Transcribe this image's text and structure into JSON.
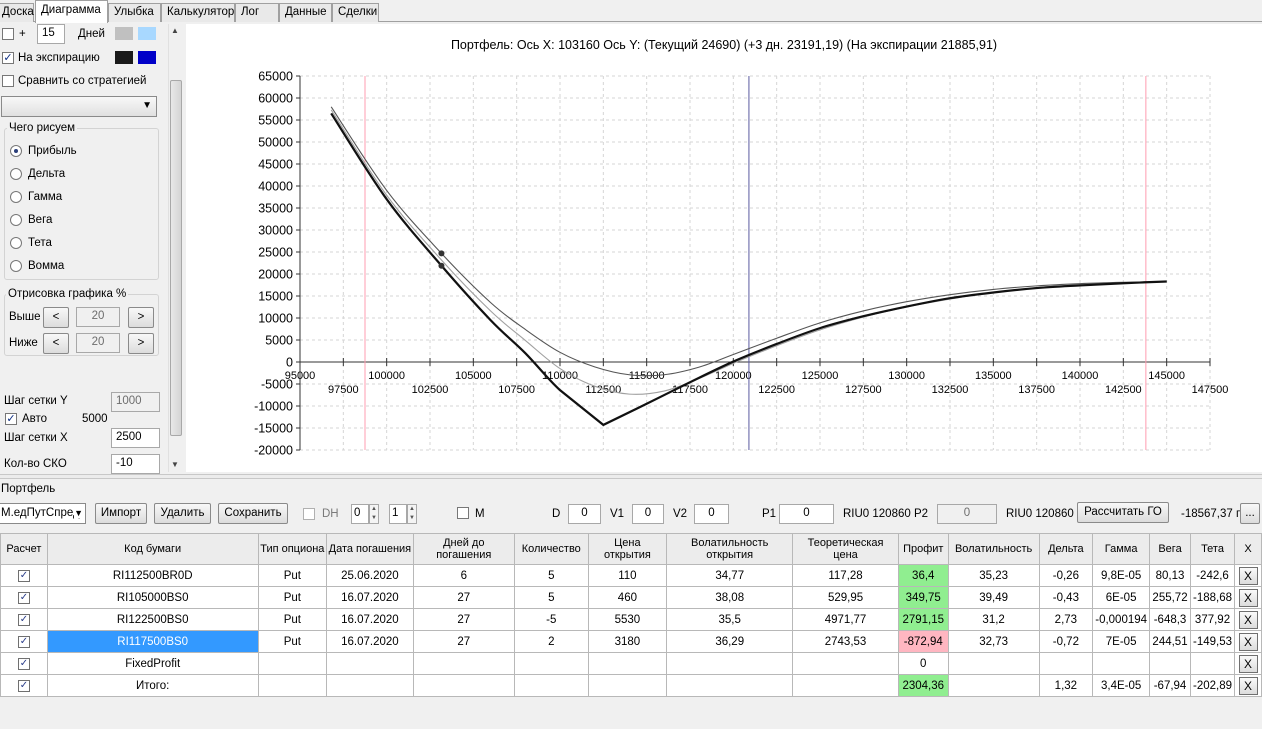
{
  "tabs": [
    "Доска",
    "Диаграмма",
    "Улыбка",
    "Калькулятор",
    "Лог",
    "Данные",
    "Сделки"
  ],
  "left": {
    "plus_label": "+",
    "days_value": "15",
    "days_label": "Дней",
    "expiry_label": "На экспирацию",
    "compare_label": "Сравнить со стратегией",
    "what_label": "Чего рисуем",
    "radios": [
      "Прибыль",
      "Дельта",
      "Гамма",
      "Вега",
      "Тета",
      "Вомма"
    ],
    "render_label": "Отрисовка графика %",
    "above_label": "Выше",
    "above_value": "20",
    "below_label": "Ниже",
    "below_value": "20",
    "grid_y_label": "Шаг сетки Y",
    "grid_y_value": "1000",
    "auto_label": "Авто",
    "auto_value": "5000",
    "grid_x_label": "Шаг сетки X",
    "grid_x_value": "2500",
    "sko_label": "Кол-во СКО",
    "sko_value": "-10"
  },
  "colors": {
    "swatch_gray": "#c0c0c0",
    "swatch_lightblue": "#a8d8ff",
    "swatch_black": "#1a1a1a",
    "swatch_blue": "#0000c8"
  },
  "chart_data": {
    "type": "line",
    "title": "Портфель: Ось X: 103160 Ось Y:  (Текущий 24690)  (+3 дн. 23191,19)  (На экспирации 21885,91)",
    "xlim": [
      95000,
      147500
    ],
    "ylim": [
      -20000,
      65000
    ],
    "x_ticks_top": [
      "95000",
      "100000",
      "105000",
      "110000",
      "115000",
      "120000",
      "125000",
      "130000",
      "135000",
      "140000",
      "145000"
    ],
    "x_ticks_bottom": [
      "97500",
      "102500",
      "107500",
      "112500",
      "117500",
      "122500",
      "127500",
      "132500",
      "137500",
      "142500",
      "147500"
    ],
    "y_ticks": [
      "65000",
      "60000",
      "55000",
      "50000",
      "45000",
      "40000",
      "35000",
      "30000",
      "25000",
      "20000",
      "15000",
      "10000",
      "5000",
      "0",
      "-5000",
      "-10000",
      "-15000",
      "-20000"
    ],
    "grid": true,
    "vlines": [
      {
        "x": 98750,
        "color": "#ff9db0"
      },
      {
        "x": 120900,
        "color": "#5a5aa0"
      },
      {
        "x": 143800,
        "color": "#ff9db0"
      }
    ],
    "series": [
      {
        "color": "#111111",
        "width": 2.2,
        "x": [
          96800,
          100000,
          103160,
          106000,
          108000,
          110000,
          112500,
          115000,
          117500,
          120000,
          122500,
          125000,
          127500,
          130000,
          132500,
          135000,
          137500,
          140000,
          142500,
          145000
        ],
        "y": [
          56500,
          37000,
          21900,
          9500,
          2000,
          -6400,
          -14300,
          -9500,
          -4600,
          100,
          4100,
          7700,
          10400,
          12600,
          14500,
          15800,
          16800,
          17400,
          17900,
          18300
        ]
      },
      {
        "color": "#555555",
        "width": 1.1,
        "x": [
          96800,
          100000,
          103160,
          106000,
          108000,
          110000,
          112000,
          114000,
          116000,
          118000,
          120000,
          122500,
          125000,
          127500,
          130000,
          132500,
          135000,
          137500,
          140000,
          142500,
          145000
        ],
        "y": [
          58000,
          39000,
          24690,
          13500,
          7400,
          2200,
          -1100,
          -2900,
          -2900,
          -1200,
          1700,
          5400,
          8900,
          11600,
          13700,
          15300,
          16500,
          17300,
          17800,
          18100,
          18300
        ]
      },
      {
        "color": "#a0a0a0",
        "width": 1.1,
        "x": [
          96800,
          100000,
          103160,
          106000,
          108000,
          110000,
          112000,
          114000,
          116000,
          118000,
          120000,
          122500,
          125000,
          127500,
          130000,
          132500,
          135000,
          137500,
          140000,
          142500,
          145000
        ],
        "y": [
          57300,
          37900,
          23191,
          11600,
          4900,
          -1500,
          -5500,
          -7300,
          -6600,
          -3800,
          -300,
          3700,
          7300,
          10200,
          12500,
          14300,
          15800,
          16900,
          17600,
          18000,
          18300
        ]
      }
    ],
    "markers": [
      {
        "x": 103160,
        "y": 24690
      },
      {
        "x": 103160,
        "y": 21886
      }
    ]
  },
  "portfolio": {
    "label": "Портфель",
    "strategy_value": "М.едПутСпред",
    "import_label": "Импорт",
    "delete_label": "Удалить",
    "save_label": "Сохранить",
    "dh_label": "DH",
    "dh_spin1": "0",
    "dh_spin2": "1",
    "m_label": "M",
    "d_label": "D",
    "d_value": "0",
    "v1_label": "V1",
    "v1_value": "0",
    "v2_label": "V2",
    "v2_value": "0",
    "p1_label": "P1",
    "p1_value": "0",
    "riu1": "RIU0 120860",
    "p2_label": "P2",
    "p2_value": "0",
    "riu2": "RIU0 120860",
    "go_button": "Рассчитать ГО",
    "go_value": "-18567,37 п",
    "ellipsis": "..."
  },
  "table": {
    "headers": [
      "Расчет",
      "Код бумаги",
      "Тип опциона",
      "Дата погашения",
      "Дней до погашения",
      "Количество",
      "Цена открытия",
      "Волатильность открытия",
      "Теоретическая цена",
      "Профит",
      "Волатильность",
      "Дельта",
      "Гамма",
      "Вега",
      "Тета",
      "X"
    ],
    "rows": [
      {
        "code": "RI112500BR0D",
        "type": "Put",
        "date": "25.06.2020",
        "days": "6",
        "qty": "5",
        "price": "110",
        "vol_open": "34,77",
        "theo": "117,28",
        "profit": "36,4",
        "profit_style": "green",
        "vol": "35,23",
        "delta": "-0,26",
        "gamma": "9,8E-05",
        "vega": "80,13",
        "theta": "-242,6",
        "x": "X"
      },
      {
        "code": "RI105000BS0",
        "type": "Put",
        "date": "16.07.2020",
        "days": "27",
        "qty": "5",
        "price": "460",
        "vol_open": "38,08",
        "theo": "529,95",
        "profit": "349,75",
        "profit_style": "green",
        "vol": "39,49",
        "delta": "-0,43",
        "gamma": "6E-05",
        "vega": "255,72",
        "theta": "-188,68",
        "x": "X"
      },
      {
        "code": "RI122500BS0",
        "type": "Put",
        "date": "16.07.2020",
        "days": "27",
        "qty": "-5",
        "price": "5530",
        "vol_open": "35,5",
        "theo": "4971,77",
        "profit": "2791,15",
        "profit_style": "green",
        "vol": "31,2",
        "delta": "2,73",
        "gamma": "-0,000194",
        "vega": "-648,3",
        "theta": "377,92",
        "x": "X"
      },
      {
        "code": "RI117500BS0",
        "type": "Put",
        "date": "16.07.2020",
        "days": "27",
        "qty": "2",
        "price": "3180",
        "vol_open": "36,29",
        "theo": "2743,53",
        "profit": "-872,94",
        "profit_style": "pink",
        "vol": "32,73",
        "delta": "-0,72",
        "gamma": "7E-05",
        "vega": "244,51",
        "theta": "-149,53",
        "x": "X",
        "selected": true
      },
      {
        "code": "FixedProfit",
        "type": "",
        "date": "",
        "days": "",
        "qty": "",
        "price": "",
        "vol_open": "",
        "theo": "",
        "profit": "0",
        "profit_style": "",
        "vol": "",
        "delta": "",
        "gamma": "",
        "vega": "",
        "theta": "",
        "x": "X"
      },
      {
        "code": "Итого:",
        "type": "",
        "date": "",
        "days": "",
        "qty": "",
        "price": "",
        "vol_open": "",
        "theo": "",
        "profit": "2304,36",
        "profit_style": "green",
        "vol": "",
        "delta": "1,32",
        "gamma": "3,4E-05",
        "vega": "-67,94",
        "theta": "-202,89",
        "x": "X"
      }
    ]
  }
}
